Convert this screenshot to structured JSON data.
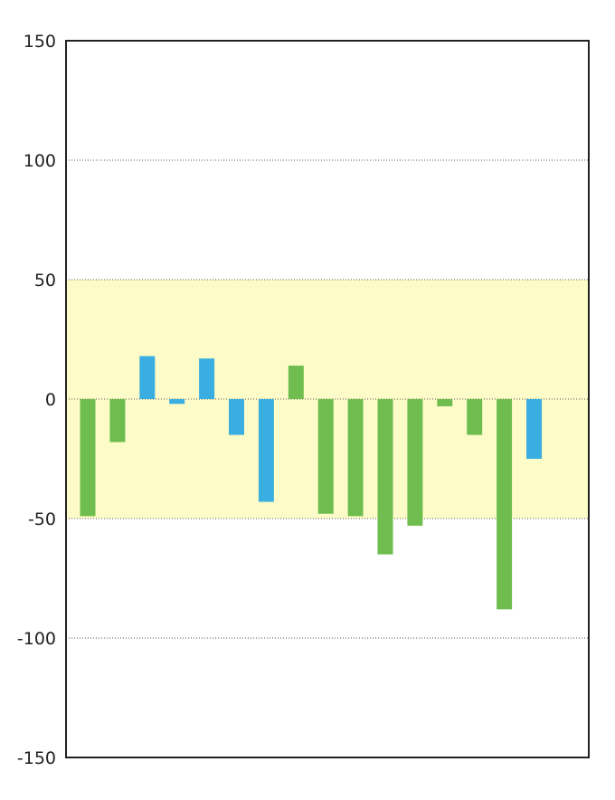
{
  "colors": {
    "band": "#fdfcc8",
    "green": "#6fbd4f",
    "blue": "#3aaee0",
    "grid": "#555555",
    "frame": "#222222"
  },
  "chart_data": {
    "type": "bar",
    "title": "",
    "xlabel": "",
    "ylabel": "",
    "ylim": [
      -150,
      150
    ],
    "yticks": [
      150,
      100,
      50,
      0,
      -50,
      -100,
      -150
    ],
    "grid": "horizontal dotted",
    "band": {
      "from": -50,
      "to": 50,
      "color": "#fdfcc8"
    },
    "values": [
      -49,
      -18,
      18,
      -2,
      17,
      -15,
      -43,
      14,
      -48,
      -49,
      -65,
      -53,
      -3,
      -15,
      -88,
      -25
    ],
    "bar_colors": [
      "green",
      "green",
      "blue",
      "blue",
      "blue",
      "blue",
      "blue",
      "green",
      "green",
      "green",
      "green",
      "green",
      "green",
      "green",
      "green",
      "blue"
    ]
  }
}
